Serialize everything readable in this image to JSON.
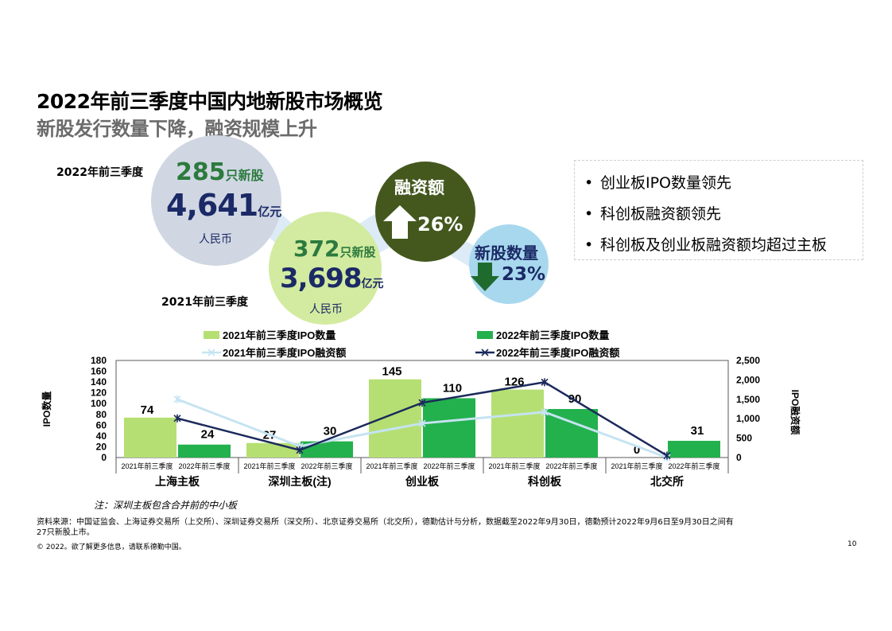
{
  "header": {
    "title": "2022年前三季度中国内地新股市场概览",
    "subtitle": "新股发行数量下降，融资规模上升"
  },
  "infographic": {
    "label_2022": "2022年前三季度",
    "label_2021": "2021年前三季度",
    "c2022": {
      "count": "285",
      "count_unit": "只新股",
      "amount": "4,641",
      "amount_unit": "亿元",
      "currency": "人民币"
    },
    "c2021": {
      "count": "372",
      "count_unit": "只新股",
      "amount": "3,698",
      "amount_unit": "亿元",
      "currency": "人民币"
    },
    "funding": {
      "title": "融资额",
      "pct": "26%",
      "direction": "up"
    },
    "ipo_count": {
      "title": "新股数量",
      "pct": "23%",
      "direction": "down"
    },
    "colors": {
      "c2022": "#d0d7e3",
      "c2021": "#d3eba0",
      "funding": "#44581e",
      "ipo_count": "#a8d8ee",
      "ribbon": "#dcebf6",
      "green_text": "#2c7a3e",
      "navy_text": "#1b2a66"
    }
  },
  "bullets": [
    "创业板IPO数量领先",
    "科创板融资额领先",
    "科创板及创业板融资额均超过主板"
  ],
  "chart_data": {
    "type": "bar",
    "categories": [
      "上海主板",
      "深圳主板(注)",
      "创业板",
      "科创板",
      "北交所"
    ],
    "sub_labels": [
      "2021年前三季度",
      "2022年前三季度"
    ],
    "series": [
      {
        "name": "2021年前三季度IPO数量",
        "kind": "bar",
        "axis": "left",
        "color": "#b5df72",
        "values": [
          74,
          27,
          145,
          126,
          0
        ]
      },
      {
        "name": "2022年前三季度IPO数量",
        "kind": "bar",
        "axis": "left",
        "color": "#23b14d",
        "values": [
          24,
          30,
          110,
          90,
          31
        ]
      },
      {
        "name": "2021年前三季度IPO融资额",
        "kind": "line",
        "axis": "right",
        "color": "#c6e3f2",
        "values": [
          1500,
          290,
          880,
          1170,
          0
        ]
      },
      {
        "name": "2022年前三季度IPO融资额",
        "kind": "line",
        "axis": "right",
        "color": "#1b2a5c",
        "values": [
          1010,
          190,
          1410,
          1940,
          50
        ]
      }
    ],
    "ylabel": "IPO数量",
    "y2label": "IPO融资额",
    "ylim": [
      0,
      180
    ],
    "yticks": [
      "180",
      "160",
      "140",
      "120",
      "100",
      "80",
      "60",
      "40",
      "20",
      "0"
    ],
    "y2lim": [
      0,
      2500
    ],
    "y2ticks": [
      "2,500",
      "2,000",
      "1,500",
      "1,000",
      "500",
      "0"
    ],
    "legend": "top",
    "grid": false
  },
  "footer": {
    "note": "注：深圳主板包含合并前的中小板",
    "source_line1": "资料来源：中国证监会、上海证券交易所（上交所）、深圳证券交易所（深交所）、北京证券交易所（北交所），德勤估计与分析，数据截至2022年9月30日，德勤预计2022年9月6日至9月30日之间有",
    "source_line2": "27只新股上市。",
    "copyright": "© 2022。欲了解更多信息，请联系德勤中国。",
    "page_number": "10"
  }
}
